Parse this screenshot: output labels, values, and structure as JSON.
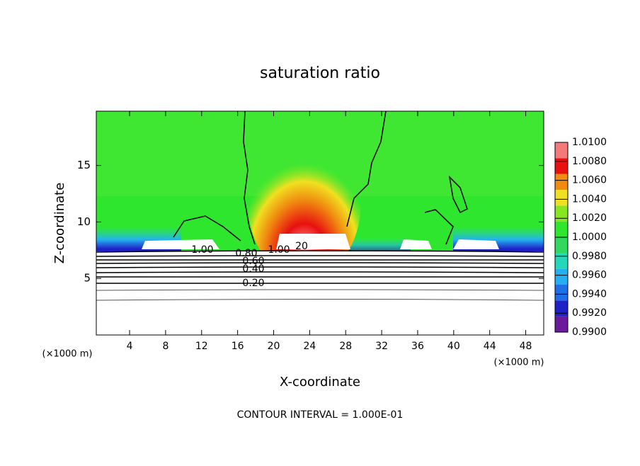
{
  "chart_data": {
    "type": "contour",
    "title": "saturation ratio",
    "x_label": "X-coordinate",
    "y_label": "Z-coordinate",
    "x_unit": "(×1000 m)",
    "y_unit": "(×1000 m)",
    "footnote": "CONTOUR INTERVAL = 1.000E-01",
    "xlim": [
      0.3,
      50
    ],
    "xticks": [
      4,
      8,
      12,
      16,
      20,
      24,
      28,
      32,
      36,
      40,
      44,
      48
    ],
    "ylim": [
      0,
      19.8
    ],
    "yticks": [
      5,
      10,
      15
    ],
    "contour_labels": [
      "1.00",
      "0.80",
      "1.00",
      "20",
      "0.60",
      "0.40",
      "0.20"
    ],
    "colorbar": {
      "lim": [
        0.99,
        1.01
      ],
      "ticks": [
        {
          "value": 0.99,
          "label": "0.9900"
        },
        {
          "value": 0.992,
          "label": "0.9920"
        },
        {
          "value": 0.994,
          "label": "0.9940"
        },
        {
          "value": 0.996,
          "label": "0.9960"
        },
        {
          "value": 0.998,
          "label": "0.9980"
        },
        {
          "value": 1.0,
          "label": "1.0000"
        },
        {
          "value": 1.002,
          "label": "1.0020"
        },
        {
          "value": 1.004,
          "label": "1.0040"
        },
        {
          "value": 1.006,
          "label": "1.0060"
        },
        {
          "value": 1.008,
          "label": "1.0080"
        },
        {
          "value": 1.01,
          "label": "1.0100"
        }
      ],
      "colors": [
        "#6a1a9a",
        "#2020c8",
        "#1e6ee8",
        "#24b0f0",
        "#22d8b8",
        "#30d860",
        "#2ee62e",
        "#88e620",
        "#f0e020",
        "#f08a10",
        "#e81010",
        "#f47a7a"
      ]
    }
  }
}
